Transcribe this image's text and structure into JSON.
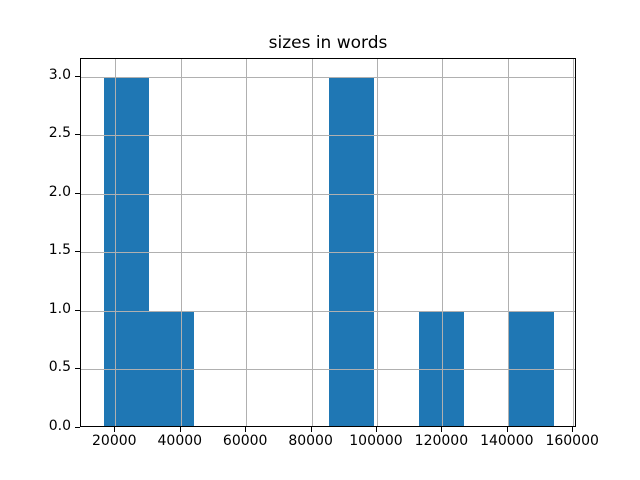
{
  "chart_data": {
    "type": "bar",
    "subtype": "histogram",
    "title": "sizes in words",
    "xlabel": "",
    "ylabel": "",
    "bin_edges": [
      16400,
      30182,
      43964,
      57746,
      71528,
      85310,
      99092,
      112874,
      126656,
      140438,
      154220
    ],
    "counts": [
      3,
      1,
      0,
      0,
      0,
      3,
      0,
      1,
      0,
      1
    ],
    "xlim": [
      9500,
      161150
    ],
    "ylim": [
      0,
      3.15
    ],
    "xticks": {
      "values": [
        20000,
        40000,
        60000,
        80000,
        100000,
        120000,
        140000,
        160000
      ],
      "labels": [
        "20000",
        "40000",
        "60000",
        "80000",
        "100000",
        "120000",
        "140000",
        "160000"
      ]
    },
    "yticks": {
      "values": [
        0.0,
        0.5,
        1.0,
        1.5,
        2.0,
        2.5,
        3.0
      ],
      "labels": [
        "0.0",
        "0.5",
        "1.0",
        "1.5",
        "2.0",
        "2.5",
        "3.0"
      ]
    },
    "grid": true,
    "grid_over_bars": true,
    "legend": false,
    "colors": {
      "bar": "#1f77b4",
      "grid": "#b0b0b0",
      "spine": "#000000",
      "background": "#ffffff",
      "text": "#000000"
    }
  }
}
